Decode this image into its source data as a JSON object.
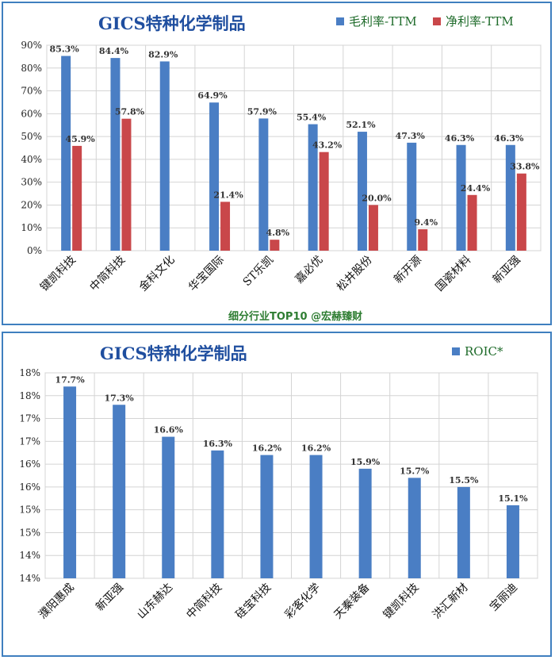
{
  "colors": {
    "blue": "#4a7ec4",
    "red": "#c9474a",
    "title": "#1f4e9f",
    "legend_text": "#1e6b2a",
    "border": "#3f7fbf"
  },
  "chart_data": [
    {
      "type": "bar",
      "title": "GICS特种化学制品",
      "categories": [
        "键凯科技",
        "中简科技",
        "金科文化",
        "华宝国际",
        "ST乐凯",
        "嘉必优",
        "松井股份",
        "新开源",
        "国瓷材料",
        "新亚强"
      ],
      "series": [
        {
          "name": "毛利率-TTM",
          "values": [
            85.3,
            84.4,
            82.9,
            64.9,
            57.9,
            55.4,
            52.1,
            47.3,
            46.3,
            46.3
          ],
          "labels": [
            "85.3%",
            "84.4%",
            "82.9%",
            "64.9%",
            "57.9%",
            "55.4%",
            "52.1%",
            "47.3%",
            "46.3%",
            "46.3%"
          ]
        },
        {
          "name": "净利率-TTM",
          "values": [
            45.9,
            57.8,
            null,
            21.4,
            4.8,
            43.2,
            20.0,
            9.4,
            24.4,
            33.8
          ],
          "labels": [
            "45.9%",
            "57.8%",
            "",
            "21.4%",
            "4.8%",
            "43.2%",
            "20.0%",
            "9.4%",
            "24.4%",
            "33.8%"
          ]
        }
      ],
      "ylim": [
        0,
        90
      ],
      "yticks": [
        "0%",
        "10%",
        "20%",
        "30%",
        "40%",
        "50%",
        "60%",
        "70%",
        "80%",
        "90%"
      ],
      "grid": true,
      "legend_position": "top-right",
      "footer": "细分行业TOP10 @宏赫臻财"
    },
    {
      "type": "bar",
      "title": "GICS特种化学制品",
      "categories": [
        "濮阳惠成",
        "新亚强",
        "山东赫达",
        "中简科技",
        "硅宝科技",
        "彩客化学",
        "天秦装备",
        "键凯科技",
        "洪汇新材",
        "宝丽迪"
      ],
      "series": [
        {
          "name": "ROIC*",
          "values": [
            17.7,
            17.3,
            16.6,
            16.3,
            16.2,
            16.2,
            15.9,
            15.7,
            15.5,
            15.1
          ],
          "labels": [
            "17.7%",
            "17.3%",
            "16.6%",
            "16.3%",
            "16.2%",
            "16.2%",
            "15.9%",
            "15.7%",
            "15.5%",
            "15.1%"
          ]
        }
      ],
      "ylim": [
        13.5,
        18
      ],
      "yticks": [
        "14%",
        "14%",
        "15%",
        "15%",
        "16%",
        "16%",
        "17%",
        "17%",
        "18%",
        "18%"
      ],
      "grid": true,
      "legend_position": "top-right"
    }
  ]
}
